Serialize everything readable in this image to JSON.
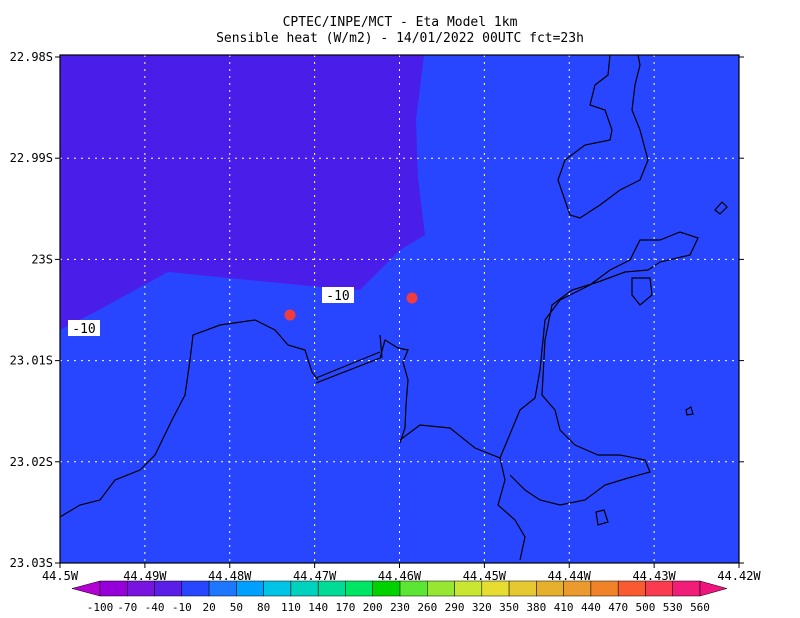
{
  "map": {
    "title": "CPTEC/INPE/MCT -  Eta Model 1km",
    "subtitle": "Sensible heat (W/m2) - 14/01/2022 00UTC fct=23h",
    "lat_ticks": [
      "22.98S",
      "22.99S",
      "23S",
      "23.01S",
      "23.02S",
      "23.03S"
    ],
    "lon_ticks": [
      "44.5W",
      "44.49W",
      "44.48W",
      "44.47W",
      "44.46W",
      "44.45W",
      "44.44W",
      "44.43W",
      "44.42W"
    ],
    "contour_labels": [
      "-10",
      "-10"
    ],
    "colorbar": {
      "labels": [
        -100,
        -70,
        -40,
        -10,
        20,
        50,
        80,
        110,
        140,
        170,
        200,
        230,
        260,
        290,
        320,
        350,
        380,
        410,
        440,
        470,
        500,
        530,
        560
      ],
      "colors": [
        "#b400d2",
        "#9600d8",
        "#7814e0",
        "#5a1ee8",
        "#2846ff",
        "#1e78ff",
        "#00a0ff",
        "#00c4e6",
        "#00d2be",
        "#00dc96",
        "#00e664",
        "#00d200",
        "#5ae632",
        "#96e632",
        "#c8e632",
        "#e6dc32",
        "#e6c832",
        "#e6af2d",
        "#eb9b2d",
        "#f08228",
        "#fa5a32",
        "#fa3c50",
        "#f01e78",
        "#f0147d"
      ]
    }
  }
}
